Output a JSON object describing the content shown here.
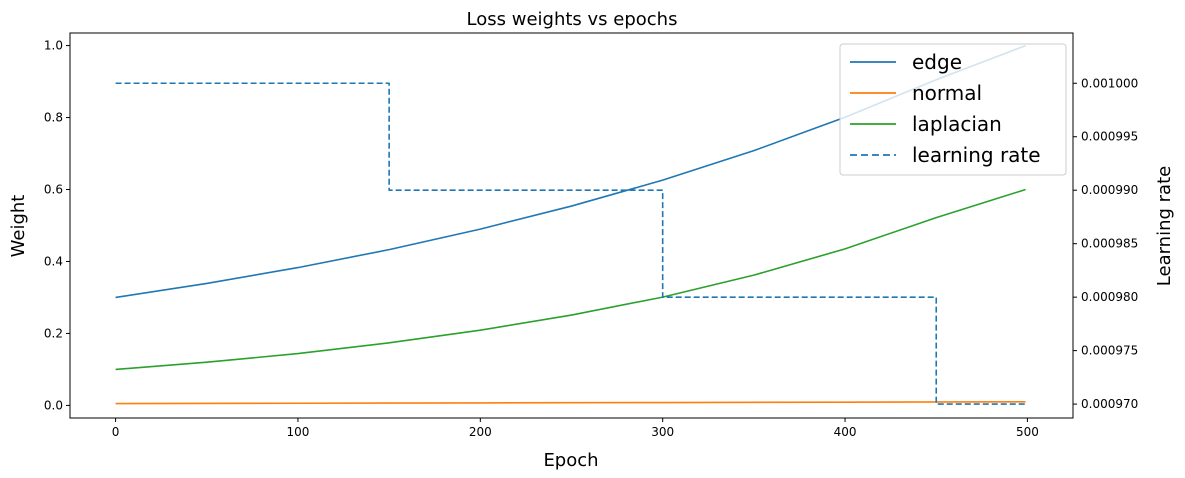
{
  "chart_data": {
    "type": "line",
    "title": "Loss weights vs epochs",
    "xlabel": "Epoch",
    "ylabel": "Weight",
    "y2label": "Learning rate",
    "xlim": [
      -25,
      525
    ],
    "ylim": [
      -0.035,
      1.035
    ],
    "y2lim": [
      0.0009687,
      0.0010047
    ],
    "x_ticks": [
      0,
      100,
      200,
      300,
      400,
      500
    ],
    "y_ticks": [
      0.0,
      0.2,
      0.4,
      0.6,
      0.8,
      1.0
    ],
    "y_tick_labels": [
      "0.0",
      "0.2",
      "0.4",
      "0.6",
      "0.8",
      "1.0"
    ],
    "y2_ticks": [
      0.00097,
      0.000975,
      0.00098,
      0.000985,
      0.00099,
      0.000995,
      0.001
    ],
    "y2_tick_labels": [
      "0.000970",
      "0.000975",
      "0.000980",
      "0.000985",
      "0.000990",
      "0.000995",
      "0.001000"
    ],
    "grid": false,
    "legend_position": "top-right",
    "series": [
      {
        "name": "edge",
        "color": "#1f77b4",
        "style": "solid",
        "axis": "left",
        "x": [
          0,
          50,
          100,
          150,
          200,
          250,
          300,
          350,
          400,
          450,
          499
        ],
        "y": [
          0.3,
          0.339,
          0.383,
          0.433,
          0.49,
          0.554,
          0.626,
          0.708,
          0.801,
          0.905,
          1.0
        ]
      },
      {
        "name": "normal",
        "color": "#ff7f0e",
        "style": "solid",
        "axis": "left",
        "x": [
          0,
          100,
          200,
          300,
          400,
          499
        ],
        "y": [
          0.005,
          0.006,
          0.007,
          0.008,
          0.009,
          0.01
        ]
      },
      {
        "name": "laplacian",
        "color": "#2ca02c",
        "style": "solid",
        "axis": "left",
        "x": [
          0,
          50,
          100,
          150,
          200,
          250,
          300,
          350,
          400,
          450,
          499
        ],
        "y": [
          0.1,
          0.12,
          0.144,
          0.174,
          0.209,
          0.251,
          0.301,
          0.362,
          0.435,
          0.522,
          0.6
        ]
      },
      {
        "name": "learning rate",
        "color": "#1f77b4",
        "style": "dashed",
        "axis": "right",
        "x": [
          0,
          150,
          150,
          300,
          300,
          450,
          450,
          499
        ],
        "y": [
          0.001,
          0.001,
          0.00099,
          0.00099,
          0.00098,
          0.00098,
          0.00097,
          0.00097
        ]
      }
    ]
  }
}
